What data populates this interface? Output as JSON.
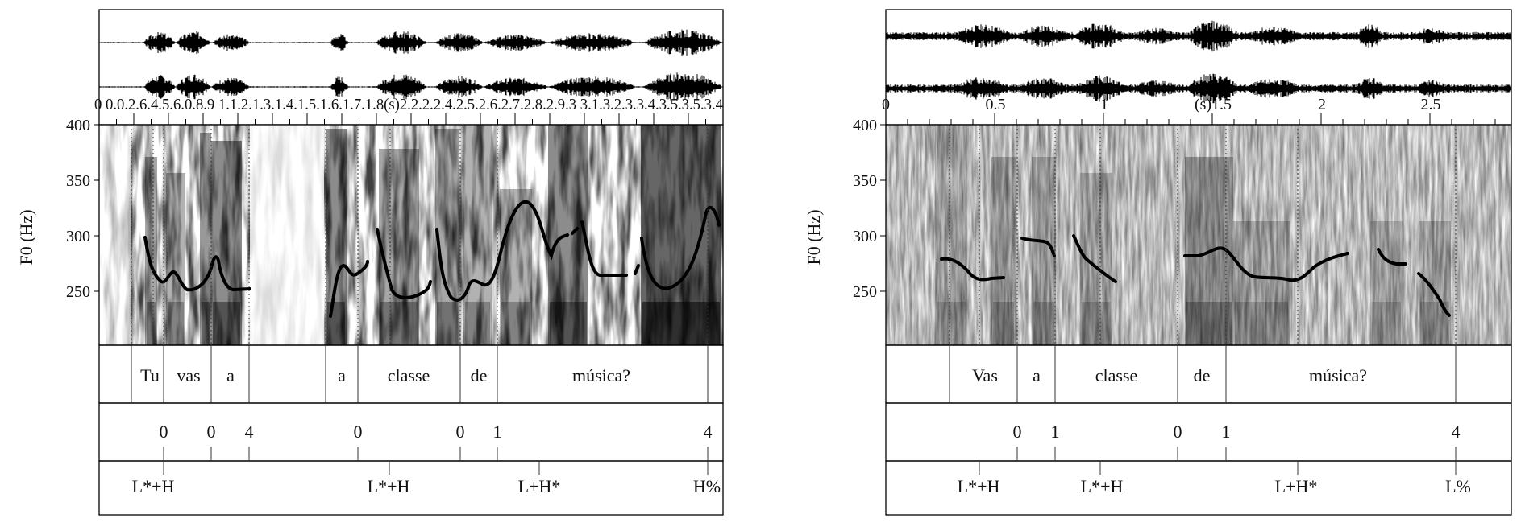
{
  "left": {
    "ylabel": "F0 (Hz)",
    "yticks": [
      "400",
      "350",
      "300",
      "250"
    ],
    "time_overlay": "0 0.0.2.6.4.5.6.0.8.9 1.1.2.1.3.1.4.1.5.1.6.1.7.1.8(s)2.2.2.2.4.2.5.2.6.2.7.2.8.2.9.3 3.1.3.2.3.3.4.3.5.3.5.3.4",
    "words": [
      "Tu",
      "vas",
      "a",
      "a",
      "classe",
      "de",
      "música?"
    ],
    "breaks": [
      "0",
      "0",
      "4",
      "0",
      "0",
      "1",
      "4"
    ],
    "tones": [
      "L*+H",
      "L*+H",
      "L+H*",
      "H%"
    ]
  },
  "right": {
    "ylabel": "F0 (Hz)",
    "yticks": [
      "400",
      "350",
      "300",
      "250"
    ],
    "xticks": [
      "0",
      "0.5",
      "1",
      "(s)1.5",
      "2",
      "2.5"
    ],
    "words": [
      "Vas",
      "a",
      "classe",
      "de",
      "música?"
    ],
    "breaks": [
      "0",
      "1",
      "0",
      "1",
      "4"
    ],
    "tones": [
      "L*+H",
      "L*+H",
      "L+H*",
      "L%"
    ]
  }
}
